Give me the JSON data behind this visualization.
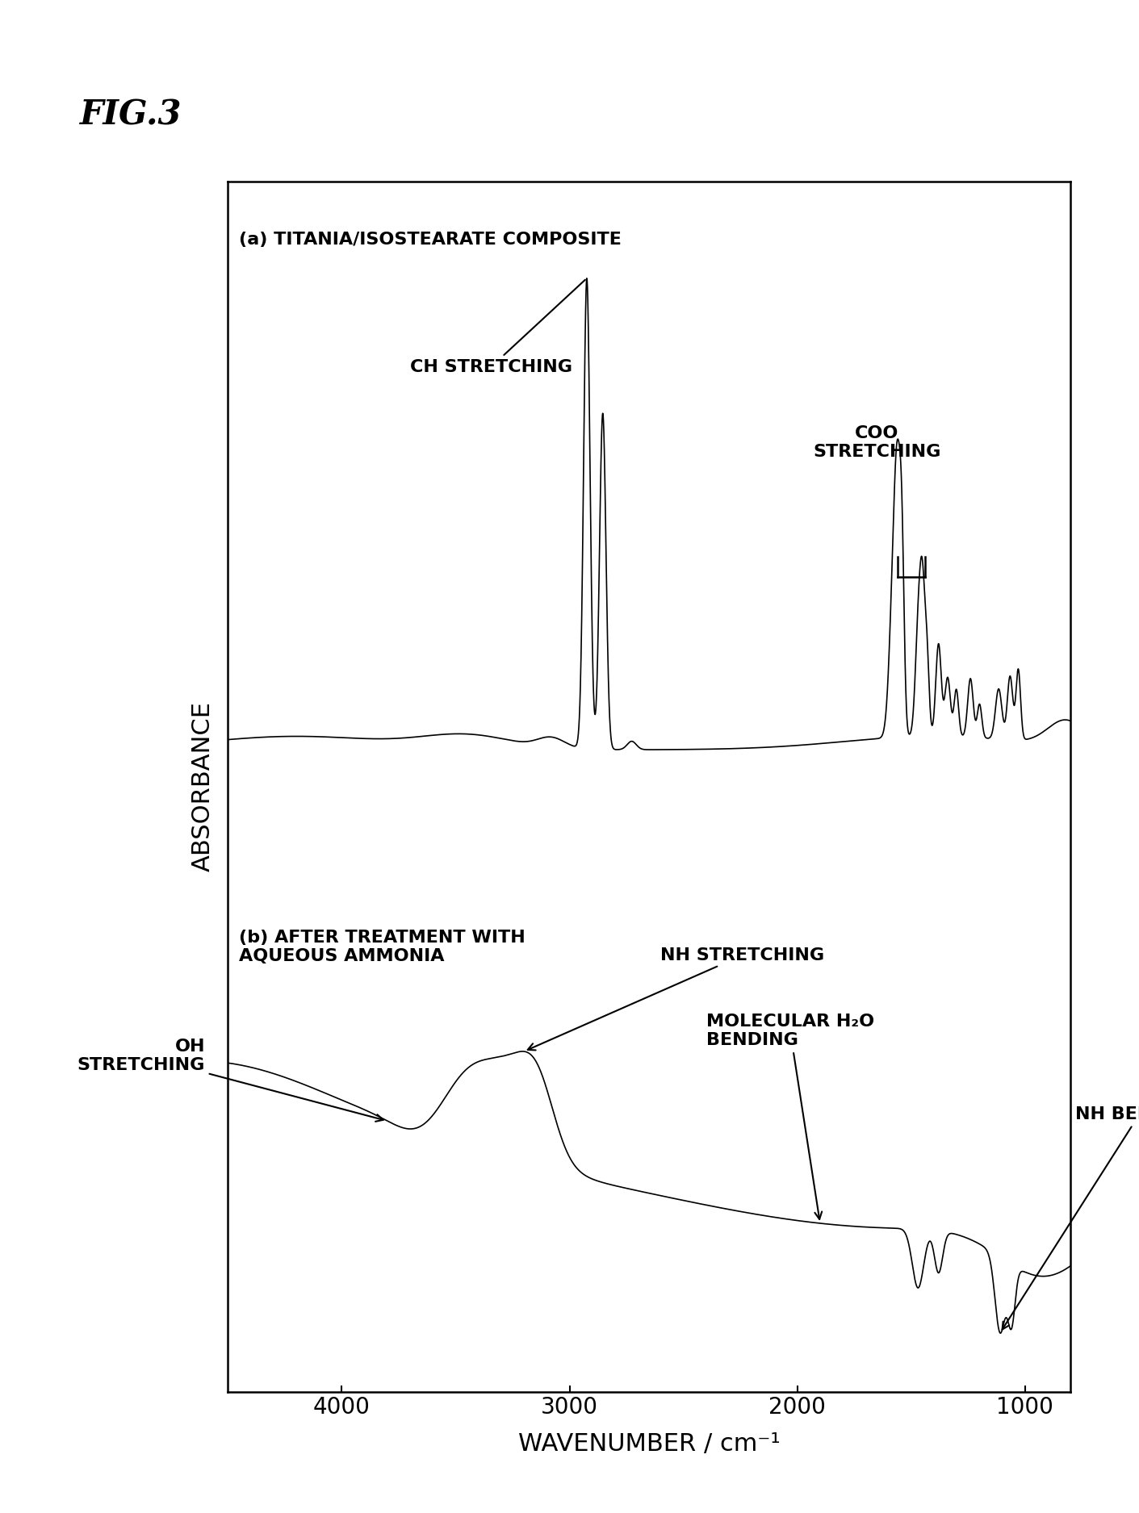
{
  "title": "FIG.3",
  "xlabel": "WAVENUMBER / cm⁻¹",
  "ylabel": "ABSORBANCE",
  "xlim": [
    4500,
    800
  ],
  "ylim": [
    -1.2,
    6.0
  ],
  "fig_size": [
    14.11,
    18.75
  ],
  "dpi": 100,
  "background_color": "#ffffff",
  "label_a": "(a) TITANIA/ISOSTEARATE COMPOSITE",
  "label_b": "(b) AFTER TREATMENT WITH\nAQUEOUS AMMONIA",
  "xticks": [
    4000,
    3000,
    2000,
    1000
  ],
  "xtick_labels": [
    "4000",
    "3000",
    "2000",
    "1000"
  ],
  "tick_fontsize": 20,
  "label_fontsize": 22,
  "annot_fontsize": 16,
  "title_fontsize": 30
}
